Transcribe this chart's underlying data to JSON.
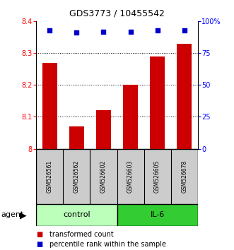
{
  "title": "GDS3773 / 10455542",
  "samples": [
    "GSM526561",
    "GSM526562",
    "GSM526602",
    "GSM526603",
    "GSM526605",
    "GSM526678"
  ],
  "bar_values": [
    8.27,
    8.07,
    8.12,
    8.2,
    8.29,
    8.33
  ],
  "percentile_values": [
    93,
    91,
    92,
    92,
    93,
    93
  ],
  "ylim_left": [
    8.0,
    8.4
  ],
  "ylim_right": [
    0,
    100
  ],
  "yticks_left": [
    8.0,
    8.1,
    8.2,
    8.3,
    8.4
  ],
  "yticks_left_labels": [
    "8",
    "8.1",
    "8.2",
    "8.3",
    "8.4"
  ],
  "yticks_right": [
    0,
    25,
    50,
    75,
    100
  ],
  "yticks_right_labels": [
    "0",
    "25",
    "50",
    "75",
    "100%"
  ],
  "bar_color": "#cc0000",
  "dot_color": "#0000cc",
  "groups": [
    {
      "label": "control",
      "indices": [
        0,
        1,
        2
      ],
      "color": "#bbffbb"
    },
    {
      "label": "IL-6",
      "indices": [
        3,
        4,
        5
      ],
      "color": "#33cc33"
    }
  ],
  "agent_label": "agent",
  "legend_items": [
    {
      "color": "#cc0000",
      "label": "transformed count"
    },
    {
      "color": "#0000cc",
      "label": "percentile rank within the sample"
    }
  ],
  "grid_color": "black",
  "background_color": "#ffffff",
  "sample_box_color": "#cccccc",
  "title_fontsize": 9,
  "tick_fontsize": 7,
  "sample_fontsize": 5.5,
  "group_fontsize": 8,
  "legend_fontsize": 7,
  "agent_fontsize": 8
}
